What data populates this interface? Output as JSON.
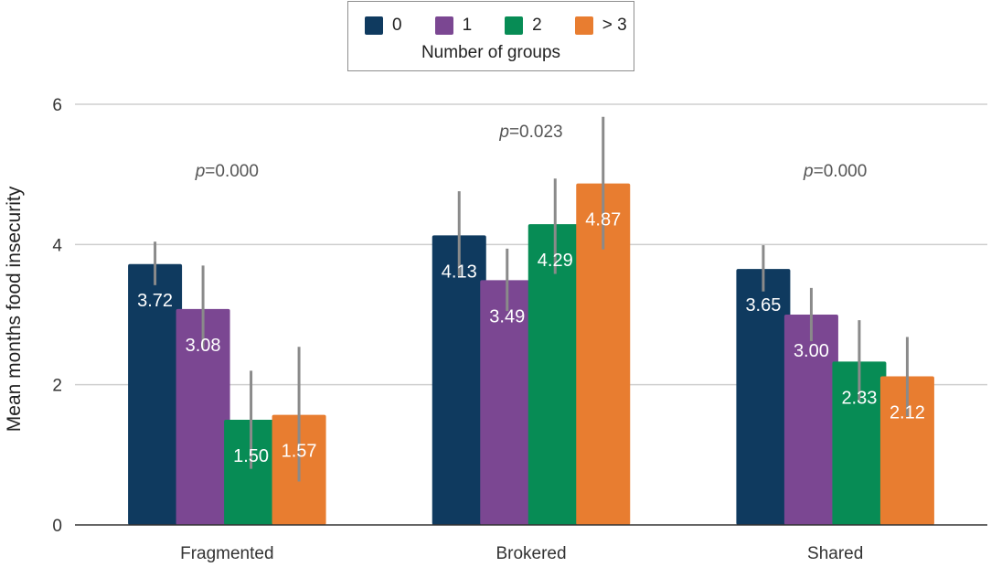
{
  "chart_data": {
    "type": "bar",
    "title": "",
    "xlabel": "",
    "ylabel": "Mean months food insecurity",
    "ylim": [
      0,
      6
    ],
    "yticks": [
      0,
      2,
      4,
      6
    ],
    "grid": true,
    "legend_title": "Number of groups",
    "legend_position": "top-center",
    "categories": [
      "Fragmented",
      "Brokered",
      "Shared"
    ],
    "series": [
      {
        "name": "0",
        "color": "#0f3a5f",
        "values": [
          3.72,
          4.13,
          3.65
        ],
        "value_labels": [
          "3.72",
          "4.13",
          "3.65"
        ],
        "error_low": [
          3.42,
          3.55,
          3.33
        ],
        "error_high": [
          4.04,
          4.76,
          3.99
        ]
      },
      {
        "name": "1",
        "color": "#7b4792",
        "values": [
          3.08,
          3.49,
          3.0
        ],
        "value_labels": [
          "3.08",
          "3.49",
          "3.00"
        ],
        "error_low": [
          2.52,
          3.05,
          2.62
        ],
        "error_high": [
          3.7,
          3.94,
          3.38
        ]
      },
      {
        "name": "2",
        "color": "#078c55",
        "values": [
          1.5,
          4.29,
          2.33
        ],
        "value_labels": [
          "1.50",
          "4.29",
          "2.33"
        ],
        "error_low": [
          0.8,
          3.58,
          1.77
        ],
        "error_high": [
          2.2,
          4.94,
          2.92
        ]
      },
      {
        "name": "> 3",
        "color": "#e87d30",
        "values": [
          1.57,
          4.87,
          2.12
        ],
        "value_labels": [
          "1.57",
          "4.87",
          "2.12"
        ],
        "error_low": [
          0.62,
          3.93,
          1.55
        ],
        "error_high": [
          2.54,
          5.82,
          2.68
        ]
      }
    ],
    "annotations": [
      {
        "category": "Fragmented",
        "prefix": "p",
        "text": "=0.000"
      },
      {
        "category": "Brokered",
        "prefix": "p",
        "text": "=0.023"
      },
      {
        "category": "Shared",
        "prefix": "p",
        "text": "=0.000"
      }
    ]
  }
}
